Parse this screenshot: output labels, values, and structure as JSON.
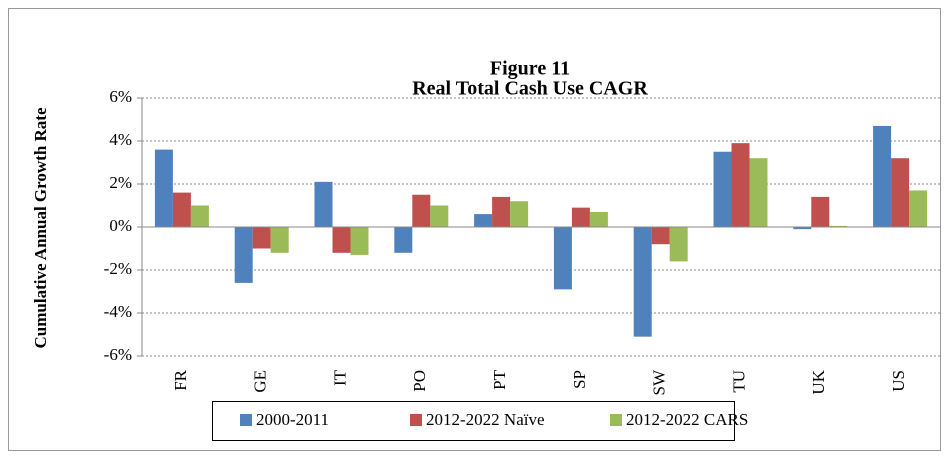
{
  "chart_data": {
    "type": "bar",
    "title": "Figure 11",
    "subtitle": "Real Total Cash Use CAGR",
    "y_label": "Cumulative Annual Growth Rate",
    "categories": [
      "FR",
      "GE",
      "IT",
      "PO",
      "PT",
      "SP",
      "SW",
      "TU",
      "UK",
      "US"
    ],
    "series": [
      {
        "name": "2000-2011",
        "color": "#4f81bd",
        "values": [
          3.6,
          -2.6,
          2.1,
          -1.2,
          0.6,
          -2.9,
          -5.1,
          3.5,
          -0.1,
          4.7
        ]
      },
      {
        "name": "2012-2022 Naïve",
        "color": "#c0504d",
        "values": [
          1.6,
          -1.0,
          -1.2,
          1.5,
          1.4,
          0.9,
          -0.8,
          3.9,
          1.4,
          3.2
        ]
      },
      {
        "name": "2012-2022 CARS",
        "color": "#9bbb59",
        "values": [
          1.0,
          -1.2,
          -1.3,
          1.0,
          1.2,
          0.7,
          -1.6,
          3.2,
          0.05,
          1.7
        ]
      }
    ],
    "ylim": [
      -6,
      6
    ],
    "yticks": [
      {
        "value": -6,
        "label": "-6%"
      },
      {
        "value": -4,
        "label": "-4%"
      },
      {
        "value": -2,
        "label": "-2%"
      },
      {
        "value": 0,
        "label": "0%"
      },
      {
        "value": 2,
        "label": "2%"
      },
      {
        "value": 4,
        "label": "4%"
      },
      {
        "value": 6,
        "label": "6%"
      }
    ],
    "grid": true,
    "legend": "bottom"
  }
}
